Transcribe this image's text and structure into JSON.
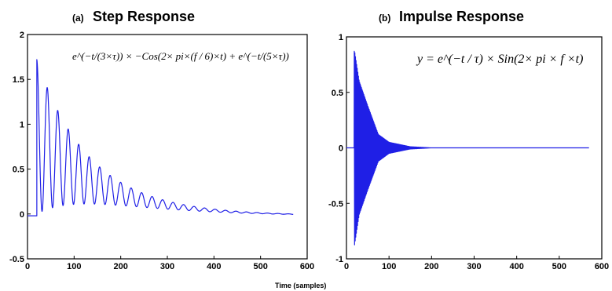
{
  "chart_data": [
    {
      "type": "line",
      "panel_label": "(a)",
      "title": "Step Response",
      "formula": "e^(−t/(3×τ)) × −Cos(2× pi×(f / 6)×t) + e^(−t/(5×τ))",
      "xlim": [
        0,
        600
      ],
      "ylim": [
        -0.5,
        2
      ],
      "xticks": [
        "0",
        "100",
        "200",
        "300",
        "400",
        "500",
        "600"
      ],
      "yticks": [
        "-0.5",
        "0",
        "0.5",
        "1",
        "1.5",
        "2"
      ],
      "grid": false,
      "series_color": "#1f1fe6",
      "series": [
        {
          "onset": 20,
          "end": 570,
          "final_value": -0.02,
          "peaks": [
            {
              "x": 30,
              "y": 1.72
            },
            {
              "x": 55,
              "y": 1.34
            },
            {
              "x": 78,
              "y": 1.06
            },
            {
              "x": 100,
              "y": 0.82
            },
            {
              "x": 122,
              "y": 0.64
            },
            {
              "x": 145,
              "y": 0.5
            },
            {
              "x": 167,
              "y": 0.38
            },
            {
              "x": 190,
              "y": 0.3
            },
            {
              "x": 212,
              "y": 0.22
            },
            {
              "x": 235,
              "y": 0.16
            },
            {
              "x": 257,
              "y": 0.12
            },
            {
              "x": 280,
              "y": 0.09
            }
          ],
          "troughs": [
            {
              "x": 42,
              "y": 0.03
            },
            {
              "x": 67,
              "y": 0.02
            },
            {
              "x": 89,
              "y": 0.01
            },
            {
              "x": 111,
              "y": 0.01
            },
            {
              "x": 133,
              "y": 0.0
            }
          ]
        }
      ]
    },
    {
      "type": "line",
      "panel_label": "(b)",
      "title": "Impulse Response",
      "formula": "y = e^(−t / τ) × Sin(2× pi × f ×t)",
      "xlim": [
        0,
        600
      ],
      "ylim": [
        -1,
        1
      ],
      "xticks": [
        "0",
        "100",
        "200",
        "300",
        "400",
        "500",
        "600"
      ],
      "yticks": [
        "-1",
        "-0.5",
        "0",
        "0.5",
        "1"
      ],
      "grid": false,
      "series_color": "#1f1fe6",
      "series": [
        {
          "onset": 18,
          "end": 570,
          "initial_max": 0.87,
          "initial_min": -0.92,
          "envelope": [
            {
              "x": 18,
              "amp": 0.9
            },
            {
              "x": 30,
              "amp": 0.6
            },
            {
              "x": 50,
              "amp": 0.38
            },
            {
              "x": 75,
              "amp": 0.12
            },
            {
              "x": 100,
              "amp": 0.05
            },
            {
              "x": 150,
              "amp": 0.01
            },
            {
              "x": 200,
              "amp": 0.0
            }
          ]
        }
      ]
    }
  ],
  "xlabel": "Time (samples)"
}
